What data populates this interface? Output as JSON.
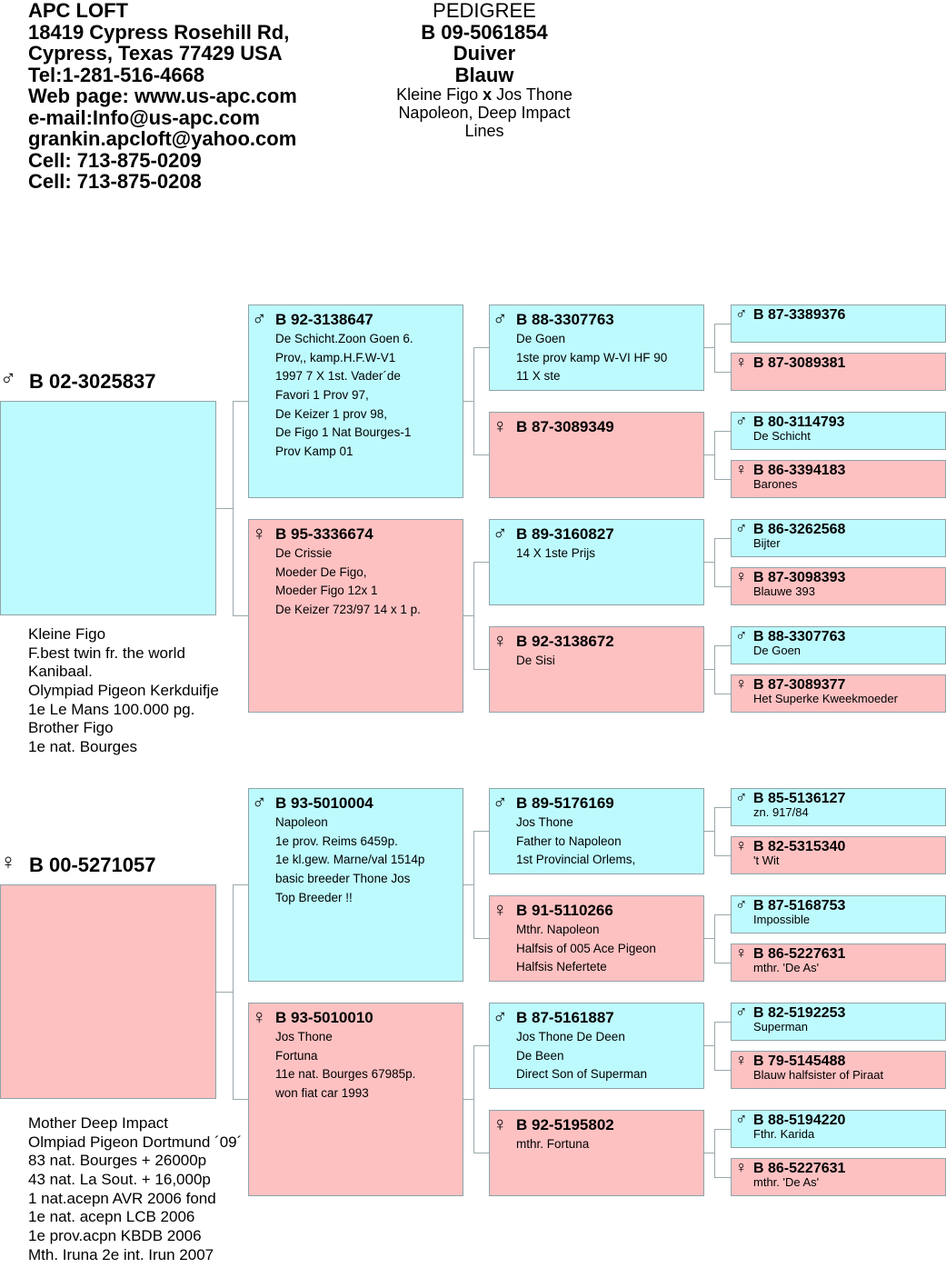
{
  "header": {
    "lines": [
      "APC LOFT",
      "18419 Cypress Rosehill Rd,",
      "Cypress, Texas 77429 USA",
      "Tel:1-281-516-4668",
      "Web page: www.us-apc.com",
      "e-mail:Info@us-apc.com",
      "grankin.apcloft@yahoo.com",
      "Cell: 713-875-0209",
      "Cell: 713-875-0208"
    ]
  },
  "title": {
    "heading": "PEDIGREE",
    "ring": "B 09-5061854",
    "name": "Duiver",
    "color": "Blauw",
    "cross_left": "Kleine Figo ",
    "cross_x": "x",
    "cross_right": " Jos Thone",
    "lines": [
      "Napoleon, Deep Impact",
      "Lines"
    ]
  },
  "symbols": {
    "male": "♂",
    "female": "♀"
  },
  "colors": {
    "male": "#bdfafe",
    "female": "#fec1c2"
  },
  "sire": {
    "sex": "male",
    "ring": "B 02-3025837",
    "notes": [
      "Kleine Figo",
      "F.best twin fr. the world",
      "Kanibaal.",
      "Olympiad Pigeon Kerkduifje",
      "1e Le Mans 100.000 pg.",
      "Brother Figo",
      "1e nat. Bourges"
    ]
  },
  "dam": {
    "sex": "female",
    "ring": "B 00-5271057",
    "notes": [
      "Mother Deep Impact",
      "Olmpiad Pigeon Dortmund ´09´",
      "83 nat. Bourges + 26000p",
      "43 nat. La Sout. + 16,000p",
      "1 nat.acepn AVR 2006 fond",
      "1e nat. acepn LCB 2006",
      "1e prov.acpn KBDB 2006",
      "Mth. Iruna 2e int. Irun 2007"
    ]
  },
  "gen2": [
    {
      "sex": "male",
      "ring": "B 92-3138647",
      "notes": [
        "De Schicht.Zoon Goen 6.",
        "Prov,, kamp.H.F.W-V1",
        "1997 7 X 1st. Vader´de",
        "Favori 1 Prov 97,",
        "De Keizer 1 prov 98,",
        "De Figo 1 Nat Bourges-1",
        "Prov Kamp 01"
      ]
    },
    {
      "sex": "female",
      "ring": "B 95-3336674",
      "notes": [
        "De Crissie",
        "Moeder De Figo,",
        "Moeder Figo 12x 1",
        "De Keizer 723/97 14 x 1 p."
      ]
    },
    {
      "sex": "male",
      "ring": "B 93-5010004",
      "notes": [
        "Napoleon",
        "1e prov. Reims 6459p.",
        "1e kl.gew. Marne/val 1514p",
        "basic breeder Thone Jos",
        "Top Breeder !!"
      ]
    },
    {
      "sex": "female",
      "ring": "B 93-5010010",
      "notes": [
        "Jos Thone",
        "Fortuna",
        "11e nat. Bourges 67985p.",
        "won fiat car 1993"
      ]
    }
  ],
  "gen3": [
    {
      "sex": "male",
      "ring": "B 88-3307763",
      "notes": [
        "De Goen",
        "1ste prov kamp W-VI HF 90",
        "11 X ste"
      ]
    },
    {
      "sex": "female",
      "ring": "B 87-3089349",
      "notes": []
    },
    {
      "sex": "male",
      "ring": "B 89-3160827",
      "notes": [
        "14 X 1ste Prijs"
      ]
    },
    {
      "sex": "female",
      "ring": "B 92-3138672",
      "notes": [
        "De Sisi"
      ]
    },
    {
      "sex": "male",
      "ring": "B 89-5176169",
      "notes": [
        "Jos Thone",
        "Father to Napoleon",
        "1st Provincial Orlems,"
      ]
    },
    {
      "sex": "female",
      "ring": "B 91-5110266",
      "notes": [
        "Mthr. Napoleon",
        "Halfsis of 005 Ace Pigeon",
        "Halfsis Nefertete"
      ]
    },
    {
      "sex": "male",
      "ring": "B 87-5161887",
      "notes": [
        "Jos Thone De Deen",
        "De Been",
        "Direct Son of Superman"
      ]
    },
    {
      "sex": "female",
      "ring": "B 92-5195802",
      "notes": [
        "mthr. Fortuna"
      ]
    }
  ],
  "gen4": [
    {
      "sex": "male",
      "ring": "B 87-3389376",
      "note": ""
    },
    {
      "sex": "female",
      "ring": "B 87-3089381",
      "note": ""
    },
    {
      "sex": "male",
      "ring": "B 80-3114793",
      "note": "De Schicht"
    },
    {
      "sex": "female",
      "ring": "B 86-3394183",
      "note": "Barones"
    },
    {
      "sex": "male",
      "ring": "B 86-3262568",
      "note": "Bijter"
    },
    {
      "sex": "female",
      "ring": "B 87-3098393",
      "note": "Blauwe 393"
    },
    {
      "sex": "male",
      "ring": "B 88-3307763",
      "note": "De Goen"
    },
    {
      "sex": "female",
      "ring": "B 87-3089377",
      "note": "Het Superke Kweekmoeder"
    },
    {
      "sex": "male",
      "ring": "B 85-5136127",
      "note": "zn. 917/84"
    },
    {
      "sex": "female",
      "ring": "B 82-5315340",
      "note": "'t Wit"
    },
    {
      "sex": "male",
      "ring": "B 87-5168753",
      "note": "Impossible"
    },
    {
      "sex": "female",
      "ring": "B 86-5227631",
      "note": "mthr. 'De As'"
    },
    {
      "sex": "male",
      "ring": "B 82-5192253",
      "note": "Superman"
    },
    {
      "sex": "female",
      "ring": "B 79-5145488",
      "note": "Blauw halfsister of Piraat"
    },
    {
      "sex": "male",
      "ring": "B 88-5194220",
      "note": "Fthr. Karida"
    },
    {
      "sex": "female",
      "ring": "B 86-5227631",
      "note": "mthr. 'De As'"
    }
  ]
}
